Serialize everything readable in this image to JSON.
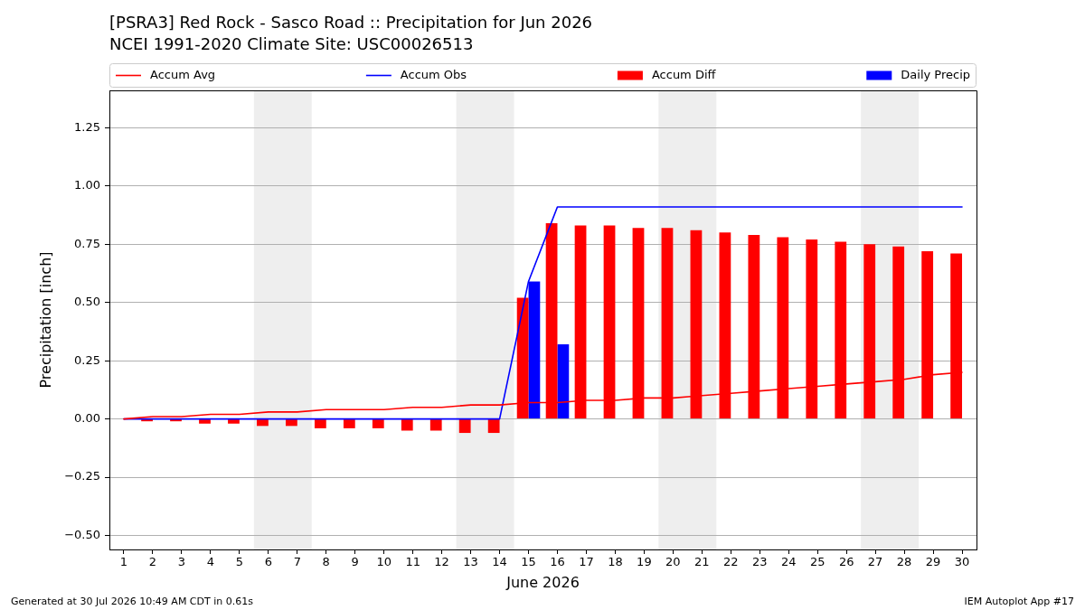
{
  "chart_data": {
    "type": "bar",
    "title": "[PSRA3] Red Rock - Sasco Road :: Precipitation for Jun 2026",
    "subtitle": "NCEI 1991-2020 Climate Site: USC00026513",
    "xlabel": "June 2026",
    "ylabel": "Precipitation [inch]",
    "annotations": [
      "Generated at 30 Jul 2026 10:49 AM CDT in 0.61s",
      "IEM Autoplot App #17"
    ],
    "x": [
      1,
      2,
      3,
      4,
      5,
      6,
      7,
      8,
      9,
      10,
      11,
      12,
      13,
      14,
      15,
      16,
      17,
      18,
      19,
      20,
      21,
      22,
      23,
      24,
      25,
      26,
      27,
      28,
      29,
      30
    ],
    "series": [
      {
        "name": "Accum Avg",
        "type": "line",
        "color": "#ff0000",
        "values": [
          0,
          0.01,
          0.01,
          0.02,
          0.02,
          0.03,
          0.03,
          0.04,
          0.04,
          0.04,
          0.05,
          0.05,
          0.06,
          0.06,
          0.07,
          0.07,
          0.08,
          0.08,
          0.09,
          0.09,
          0.1,
          0.11,
          0.12,
          0.13,
          0.14,
          0.15,
          0.16,
          0.17,
          0.19,
          0.2
        ]
      },
      {
        "name": "Accum Obs",
        "type": "line",
        "color": "#0000ff",
        "values": [
          0,
          0,
          0,
          0,
          0,
          0,
          0,
          0,
          0,
          0,
          0,
          0,
          0,
          0,
          0.59,
          0.91,
          0.91,
          0.91,
          0.91,
          0.91,
          0.91,
          0.91,
          0.91,
          0.91,
          0.91,
          0.91,
          0.91,
          0.91,
          0.91,
          0.91
        ]
      },
      {
        "name": "Accum Diff",
        "color": "#ff0000",
        "values": [
          0,
          -0.01,
          -0.01,
          -0.02,
          -0.02,
          -0.03,
          -0.03,
          -0.04,
          -0.04,
          -0.04,
          -0.05,
          -0.05,
          -0.06,
          -0.06,
          0.52,
          0.84,
          0.83,
          0.83,
          0.82,
          0.82,
          0.81,
          0.8,
          0.79,
          0.78,
          0.77,
          0.76,
          0.75,
          0.74,
          0.72,
          0.71
        ]
      },
      {
        "name": "Daily Precip",
        "color": "#0000ff",
        "values": [
          0,
          0,
          0,
          0,
          0,
          0,
          0,
          0,
          0,
          0,
          0,
          0,
          0,
          0,
          0.59,
          0.32,
          0,
          0,
          0,
          0,
          0,
          0,
          0,
          0,
          0,
          0,
          0,
          0,
          0,
          0
        ]
      }
    ],
    "xlim": [
      0.5,
      30.5
    ],
    "xticks": [
      1,
      2,
      3,
      4,
      5,
      6,
      7,
      8,
      9,
      10,
      11,
      12,
      13,
      14,
      15,
      16,
      17,
      18,
      19,
      20,
      21,
      22,
      23,
      24,
      25,
      26,
      27,
      28,
      29,
      30
    ],
    "ylim": [
      -0.56,
      1.41
    ],
    "yticks": [
      {
        "value": -0.5,
        "label": "−0.50"
      },
      {
        "value": -0.25,
        "label": "−0.25"
      },
      {
        "value": 0,
        "label": "0.00"
      },
      {
        "value": 0.25,
        "label": "0.25"
      },
      {
        "value": 0.5,
        "label": "0.50"
      },
      {
        "value": 0.75,
        "label": "0.75"
      },
      {
        "value": 1,
        "label": "1.00"
      },
      {
        "value": 1.25,
        "label": "1.25"
      }
    ],
    "bands": [
      {
        "axis": "x",
        "from": 5.5,
        "to": 7.5,
        "color": "#eeeeee"
      },
      {
        "axis": "x",
        "from": 12.5,
        "to": 14.5,
        "color": "#eeeeee"
      },
      {
        "axis": "x",
        "from": 19.5,
        "to": 21.5,
        "color": "#eeeeee"
      },
      {
        "axis": "x",
        "from": 26.5,
        "to": 28.5,
        "color": "#eeeeee"
      }
    ],
    "grid": "y",
    "legend": "top"
  }
}
